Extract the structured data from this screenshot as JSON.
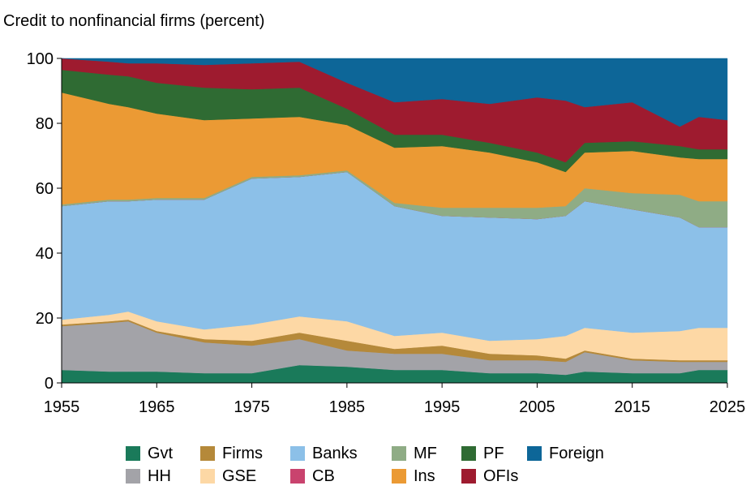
{
  "chart_data": {
    "type": "area",
    "title": "Credit to nonfinancial firms (percent)",
    "xlabel": "",
    "ylabel": "",
    "xlim": [
      1955,
      2025
    ],
    "ylim": [
      0,
      100
    ],
    "x_ticks": [
      "1955",
      "1965",
      "1975",
      "1985",
      "1995",
      "2005",
      "2015",
      "2025"
    ],
    "y_ticks": [
      "0",
      "20",
      "40",
      "60",
      "80",
      "100"
    ],
    "stacked": true,
    "grid": false,
    "legend_position": "bottom",
    "x": [
      1955,
      1960,
      1962,
      1965,
      1970,
      1975,
      1980,
      1985,
      1990,
      1995,
      2000,
      2005,
      2008,
      2010,
      2015,
      2020,
      2022,
      2025
    ],
    "series": [
      {
        "name": "Gvt",
        "color": "#1a7a5a",
        "values": [
          4,
          3.5,
          3.5,
          3.5,
          3,
          3,
          5.5,
          5,
          4,
          4,
          3,
          3,
          2.5,
          3.5,
          3,
          3,
          4,
          4
        ]
      },
      {
        "name": "HH",
        "color": "#a3a3a8",
        "values": [
          13.5,
          15,
          15.5,
          12,
          9.5,
          8.5,
          8,
          5,
          5,
          5,
          4,
          4,
          4,
          6,
          4,
          3.5,
          2.5,
          2.5
        ]
      },
      {
        "name": "Firms",
        "color": "#b5893a",
        "values": [
          0.5,
          0.5,
          0.5,
          0.5,
          1,
          1.5,
          2,
          3,
          1.5,
          2.5,
          2,
          1.5,
          1,
          0.5,
          0.5,
          0.5,
          0.5,
          0.5
        ]
      },
      {
        "name": "GSE",
        "color": "#fdd8a5",
        "values": [
          1.5,
          2,
          2.5,
          3,
          3,
          5,
          5,
          6,
          4,
          4,
          4,
          5,
          7,
          7,
          8,
          9,
          10,
          10
        ]
      },
      {
        "name": "Banks",
        "color": "#8cc0e8",
        "values": [
          35,
          35,
          34,
          37.5,
          40,
          45,
          43,
          46,
          40,
          36,
          38,
          37,
          37,
          39,
          38,
          35,
          31,
          31
        ]
      },
      {
        "name": "CB",
        "color": "#c9436e",
        "values": [
          0,
          0,
          0,
          0,
          0,
          0,
          0,
          0,
          0,
          0,
          0,
          0,
          0,
          0,
          0,
          0,
          0,
          0
        ]
      },
      {
        "name": "MF",
        "color": "#8fac85",
        "values": [
          0.5,
          0.5,
          0.5,
          0.5,
          0.5,
          0.5,
          0.5,
          0.5,
          1,
          2.5,
          3,
          3.5,
          3,
          4,
          5,
          7,
          8,
          8
        ]
      },
      {
        "name": "Ins",
        "color": "#eb9a34",
        "values": [
          34.5,
          29.5,
          28.5,
          26,
          24,
          18,
          18,
          14,
          17,
          19,
          17,
          14,
          10.5,
          11,
          13,
          11.5,
          13,
          13
        ]
      },
      {
        "name": "PF",
        "color": "#2f6b33",
        "values": [
          7,
          9,
          9.5,
          9.5,
          10,
          9,
          9,
          5,
          4,
          3.5,
          3,
          3,
          3,
          3,
          3,
          3.5,
          3,
          3
        ]
      },
      {
        "name": "OFIs",
        "color": "#9e1b2f",
        "values": [
          3.5,
          4,
          4,
          6,
          7,
          8,
          8,
          8,
          10,
          11,
          12,
          17,
          19,
          11,
          12,
          6,
          10,
          9
        ]
      },
      {
        "name": "Foreign",
        "color": "#0d6698",
        "values": [
          0,
          1,
          1.5,
          1.5,
          2,
          1.5,
          1,
          7.5,
          13.5,
          12.5,
          14,
          12,
          13,
          15,
          13.5,
          21,
          18,
          19
        ]
      }
    ]
  },
  "legend": {
    "items": [
      {
        "key": "gvt",
        "label": "Gvt",
        "color": "#1a7a5a"
      },
      {
        "key": "firms",
        "label": "Firms",
        "color": "#b5893a"
      },
      {
        "key": "banks",
        "label": "Banks",
        "color": "#8cc0e8"
      },
      {
        "key": "mf",
        "label": "MF",
        "color": "#8fac85"
      },
      {
        "key": "pf",
        "label": "PF",
        "color": "#2f6b33"
      },
      {
        "key": "foreign",
        "label": "Foreign",
        "color": "#0d6698"
      },
      {
        "key": "hh",
        "label": "HH",
        "color": "#a3a3a8"
      },
      {
        "key": "gse",
        "label": "GSE",
        "color": "#fdd8a5"
      },
      {
        "key": "cb",
        "label": "CB",
        "color": "#c9436e"
      },
      {
        "key": "ins",
        "label": "Ins",
        "color": "#eb9a34"
      },
      {
        "key": "ofis",
        "label": "OFIs",
        "color": "#9e1b2f"
      }
    ]
  }
}
